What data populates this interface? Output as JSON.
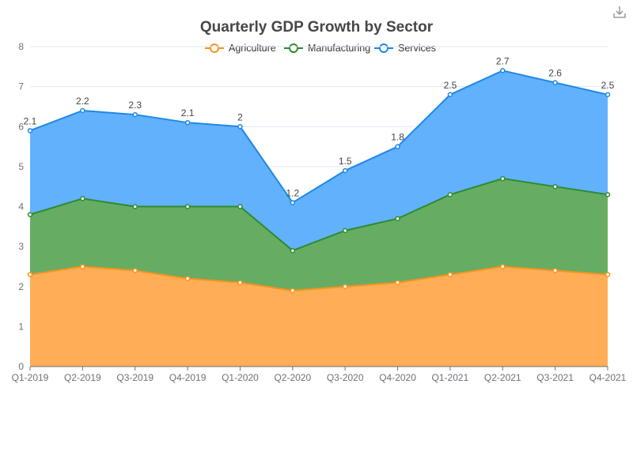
{
  "chart_data": {
    "type": "area",
    "stacked": true,
    "title": "Quarterly GDP Growth by Sector",
    "categories": [
      "Q1-2019",
      "Q2-2019",
      "Q3-2019",
      "Q4-2019",
      "Q1-2020",
      "Q2-2020",
      "Q3-2020",
      "Q4-2020",
      "Q1-2021",
      "Q2-2021",
      "Q3-2021",
      "Q4-2021"
    ],
    "series": [
      {
        "name": "Agriculture",
        "color": "#ffa94d",
        "line_color": "#f7931e",
        "values": [
          2.3,
          2.5,
          2.4,
          2.2,
          2.1,
          1.9,
          2.0,
          2.1,
          2.3,
          2.5,
          2.4,
          2.3
        ]
      },
      {
        "name": "Manufacturing",
        "color": "#5ea95b",
        "line_color": "#2e8b2e",
        "values": [
          1.5,
          1.7,
          1.6,
          1.8,
          1.9,
          1.0,
          1.4,
          1.6,
          2.0,
          2.2,
          2.1,
          2.0
        ]
      },
      {
        "name": "Services",
        "color": "#58adfd",
        "line_color": "#1e88e5",
        "values": [
          2.1,
          2.2,
          2.3,
          2.1,
          2.0,
          1.2,
          1.5,
          1.8,
          2.5,
          2.7,
          2.6,
          2.5
        ]
      }
    ],
    "data_labels_series": "Services",
    "ylim": [
      0,
      8
    ],
    "yticks": [
      0,
      1,
      2,
      3,
      4,
      5,
      6,
      7,
      8
    ],
    "grid": true,
    "legend_position": "top-center"
  },
  "toolbar": {
    "download_icon": "download-icon"
  }
}
